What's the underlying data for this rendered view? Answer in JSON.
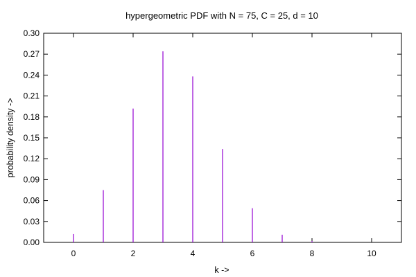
{
  "chart_data": {
    "type": "bar",
    "title": "hypergeometric PDF with N = 75, C = 25, d = 10",
    "xlabel": "k ->",
    "ylabel": "probability density ->",
    "xlim": [
      -1,
      11
    ],
    "ylim": [
      0,
      0.3
    ],
    "xticks": [
      0,
      2,
      4,
      6,
      8,
      10
    ],
    "yticks": [
      0.0,
      0.03,
      0.06,
      0.09,
      0.12,
      0.15,
      0.18,
      0.21,
      0.24,
      0.27,
      0.3
    ],
    "ytick_labels": [
      "0.00",
      "0.03",
      "0.06",
      "0.09",
      "0.12",
      "0.15",
      "0.18",
      "0.21",
      "0.24",
      "0.27",
      "0.30"
    ],
    "xtick_labels": [
      "0",
      "2",
      "4",
      "6",
      "8",
      "10"
    ],
    "x": [
      0,
      1,
      2,
      3,
      4,
      5,
      6,
      7,
      8,
      9,
      10
    ],
    "values": [
      0.012,
      0.075,
      0.192,
      0.274,
      0.238,
      0.134,
      0.049,
      0.011,
      0.002,
      0.0,
      0.0
    ],
    "series_color": "#9400d3",
    "grid": false,
    "legend": "none"
  }
}
